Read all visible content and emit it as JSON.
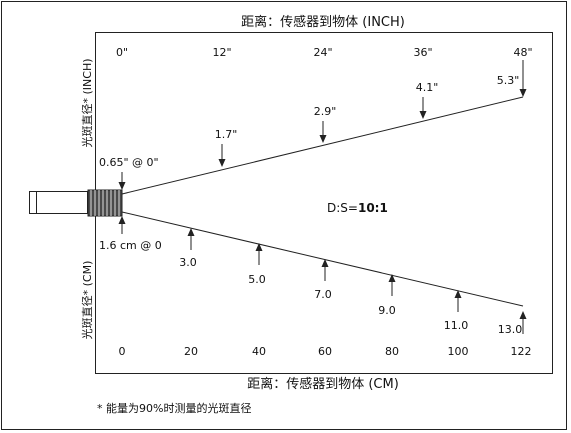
{
  "title_top": "距离：传感器到物体 (INCH)",
  "title_bottom": "距离：传感器到物体 (CM)",
  "ylabel_top": "光斑直径* (INCH)",
  "ylabel_bottom": "光斑直径* (CM)",
  "ticks_inch": [
    "0\"",
    "12\"",
    "24\"",
    "36\"",
    "48\""
  ],
  "ticks_cm": [
    "0",
    "20",
    "40",
    "60",
    "80",
    "100",
    "122"
  ],
  "spot_inch_labels": [
    "1.7\"",
    "2.9\"",
    "4.1\"",
    "5.3\""
  ],
  "spot_cm_labels": [
    "3.0",
    "5.0",
    "7.0",
    "9.0",
    "11.0",
    "13.0"
  ],
  "origin_inch_label": "0.65\" @ 0\"",
  "origin_cm_label": "1.6 cm @ 0",
  "ratio_label": "D:S=",
  "ratio_value": "10:1",
  "footnote": "* 能量为90%时测量的光斑直径"
}
